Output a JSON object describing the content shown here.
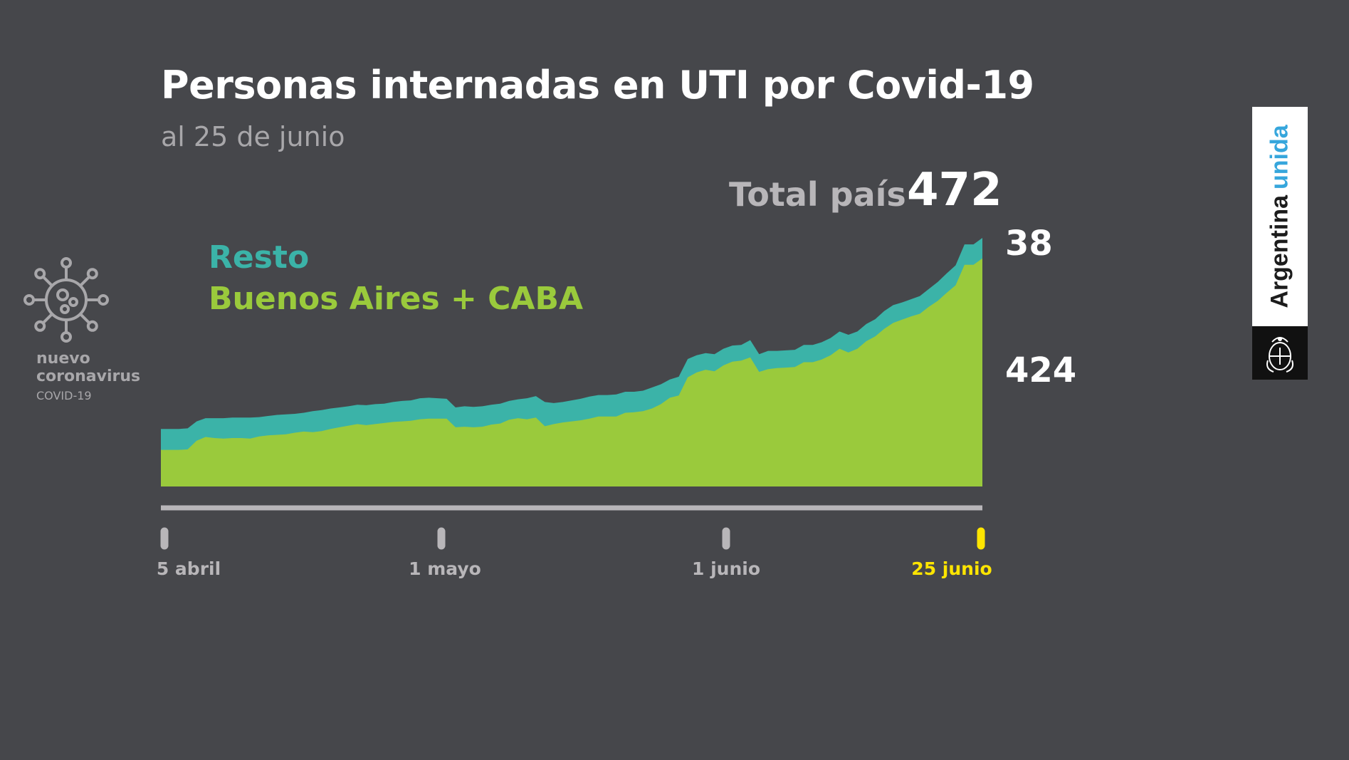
{
  "header": {
    "title": "Personas internadas en UTI por Covid-19",
    "subtitle": "al 25 de junio"
  },
  "total": {
    "label": "Total país",
    "value": "472"
  },
  "legend": {
    "resto": {
      "label": "Resto",
      "color": "#3bb3a8"
    },
    "ba": {
      "label": "Buenos Aires + CABA",
      "color": "#9aca3c"
    }
  },
  "end_labels": {
    "resto": "38",
    "ba": "424"
  },
  "axis": {
    "highlight_color": "#ffe500",
    "ticks": [
      {
        "label": "5 abril",
        "highlight": false
      },
      {
        "label": "1 mayo",
        "highlight": false
      },
      {
        "label": "1 junio",
        "highlight": false
      },
      {
        "label": "25 junio",
        "highlight": true
      }
    ]
  },
  "branding": {
    "virus_line1": "nuevo",
    "virus_line2": "coronavirus",
    "virus_line3": "COVID-19",
    "word1": "Argentina",
    "word2": "unida",
    "logo_icon": "coronavirus-icon",
    "seal_icon": "argentina-coat-of-arms-icon"
  },
  "chart_data": {
    "type": "area",
    "stacked": true,
    "x_range": [
      "5 abril",
      "25 junio"
    ],
    "x_ticks": [
      "5 abril",
      "1 mayo",
      "1 junio",
      "25 junio"
    ],
    "ylim": [
      0,
      480
    ],
    "grid": false,
    "series": [
      {
        "name": "Buenos Aires + CABA",
        "color": "#9aca3c",
        "values": [
          68,
          68,
          68,
          69,
          85,
          92,
          90,
          89,
          90,
          90,
          89,
          93,
          95,
          96,
          97,
          100,
          102,
          101,
          103,
          107,
          110,
          113,
          116,
          114,
          116,
          118,
          120,
          121,
          122,
          125,
          126,
          126,
          126,
          110,
          111,
          110,
          111,
          115,
          117,
          124,
          127,
          125,
          128,
          112,
          116,
          119,
          121,
          123,
          126,
          130,
          130,
          130,
          137,
          138,
          140,
          145,
          153,
          165,
          169,
          203,
          212,
          217,
          214,
          225,
          232,
          234,
          240,
          213,
          218,
          220,
          221,
          222,
          231,
          231,
          236,
          244,
          256,
          249,
          256,
          270,
          279,
          293,
          304,
          310,
          316,
          321,
          334,
          345,
          360,
          374,
          412,
          412,
          424
        ]
      },
      {
        "name": "Resto",
        "color": "#3bb3a8",
        "values": [
          39,
          39,
          39,
          39,
          36,
          35,
          37,
          38,
          38,
          38,
          39,
          36,
          36,
          37,
          37,
          35,
          35,
          39,
          39,
          38,
          37,
          36,
          36,
          37,
          37,
          36,
          37,
          38,
          38,
          39,
          39,
          38,
          37,
          37,
          38,
          38,
          38,
          37,
          37,
          35,
          35,
          39,
          40,
          45,
          39,
          38,
          39,
          40,
          41,
          40,
          40,
          41,
          39,
          38,
          38,
          39,
          37,
          34,
          35,
          34,
          32,
          31,
          32,
          31,
          30,
          29,
          32,
          33,
          34,
          32,
          32,
          32,
          32,
          32,
          32,
          32,
          32,
          33,
          32,
          32,
          32,
          33,
          33,
          32,
          32,
          33,
          33,
          35,
          36,
          37,
          38,
          38,
          38
        ]
      }
    ]
  }
}
